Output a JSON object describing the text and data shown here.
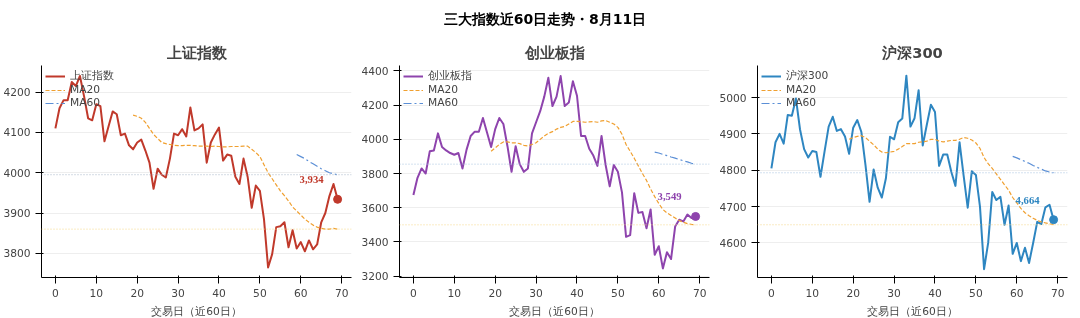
{
  "chart_data": [
    {
      "type": "other",
      "title": "三大指数近60日走势・8月11日"
    },
    {
      "type": "line",
      "title": "上证指数",
      "xlabel": "交易日（近60日）",
      "xlim": [
        -3.4,
        72.4
      ],
      "xticks": [
        0,
        10,
        20,
        30,
        40,
        50,
        60,
        70
      ],
      "ylim": [
        3740,
        4266
      ],
      "yticks": [
        3800,
        3900,
        4000,
        4100,
        4200
      ],
      "grid": "y",
      "legend": "top left",
      "series": [
        {
          "name": "上证指数",
          "type": "line",
          "color": "#c0392b",
          "line_style": "solid",
          "x": [
            0,
            1,
            2,
            3,
            4,
            5,
            6,
            7,
            8,
            9,
            10,
            11,
            12,
            13,
            14,
            15,
            16,
            17,
            18,
            19,
            20,
            21,
            22,
            23,
            24,
            25,
            26,
            27,
            28,
            29,
            30,
            31,
            32,
            33,
            34,
            35,
            36,
            37,
            38,
            39,
            40,
            41,
            42,
            43,
            44,
            45,
            46,
            47,
            48,
            49,
            50,
            51,
            52,
            53,
            54,
            55,
            56,
            57,
            58,
            59,
            60,
            61,
            62,
            63,
            64,
            65,
            66,
            67,
            68,
            69
          ],
          "values": [
            4110,
            4160,
            4180,
            4180,
            4225,
            4215,
            4240,
            4190,
            4135,
            4130,
            4170,
            4165,
            4078,
            4115,
            4152,
            4145,
            4093,
            4097,
            4068,
            4058,
            4075,
            4082,
            4055,
            4025,
            3960,
            4010,
            3995,
            3988,
            4035,
            4097,
            4093,
            4108,
            4090,
            4162,
            4105,
            4110,
            4120,
            4025,
            4075,
            4095,
            4112,
            4030,
            4045,
            4042,
            3990,
            3972,
            4035,
            3990,
            3913,
            3968,
            3955,
            3885,
            3765,
            3798,
            3865,
            3867,
            3877,
            3815,
            3857,
            3812,
            3828,
            3805,
            3832,
            3810,
            3822,
            3877,
            3900,
            3942,
            3972,
            3934
          ]
        },
        {
          "name": "MA20",
          "type": "line",
          "color": "#f0a030",
          "line_style": "dashed",
          "x": [
            19,
            20,
            21,
            22,
            23,
            24,
            25,
            26,
            27,
            28,
            29,
            30,
            31,
            32,
            33,
            34,
            35,
            36,
            37,
            38,
            39,
            40,
            41,
            42,
            43,
            44,
            45,
            46,
            47,
            48,
            49,
            50,
            51,
            52,
            53,
            54,
            55,
            56,
            57,
            58,
            59,
            60,
            61,
            62,
            63,
            64,
            65,
            66,
            67,
            68,
            69
          ],
          "values": [
            4143,
            4140,
            4135,
            4125,
            4110,
            4095,
            4085,
            4075,
            4072,
            4070,
            4068,
            4067,
            4067,
            4068,
            4068,
            4067,
            4066,
            4066,
            4066,
            4065,
            4066,
            4065,
            4064,
            4064,
            4065,
            4065,
            4065,
            4066,
            4066,
            4058,
            4050,
            4040,
            4020,
            4000,
            3985,
            3970,
            3955,
            3943,
            3930,
            3915,
            3905,
            3895,
            3885,
            3877,
            3870,
            3865,
            3862,
            3860,
            3860,
            3862,
            3860
          ]
        },
        {
          "name": "MA60",
          "type": "line",
          "color": "#5b8fd6",
          "line_style": "dashdot",
          "x": [
            59,
            60,
            61,
            62,
            63,
            64,
            65,
            66,
            67,
            68,
            69
          ],
          "values": [
            4045,
            4040,
            4035,
            4028,
            4022,
            4016,
            4010,
            4005,
            4000,
            3997,
            3995
          ]
        },
        {
          "type": "scatter",
          "marker": "circle",
          "color": "#c0392b",
          "x": [
            69
          ],
          "values": [
            3934
          ],
          "value_labels": [
            "3,934"
          ]
        }
      ],
      "ref_lines": [
        {
          "axis": "y",
          "value": 3995,
          "color": "#a8b8c8",
          "line_style": "dotted"
        },
        {
          "axis": "y",
          "value": 3860,
          "color": "#f5d78a",
          "line_style": "dotted"
        }
      ]
    },
    {
      "type": "line",
      "title": "创业板指",
      "xlabel": "交易日（近60日）",
      "xlim": [
        -3.4,
        72.4
      ],
      "xticks": [
        0,
        10,
        20,
        30,
        40,
        50,
        60,
        70
      ],
      "ylim": [
        3192,
        4432
      ],
      "yticks": [
        3200,
        3400,
        3600,
        3800,
        4000,
        4200,
        4400
      ],
      "grid": "y",
      "legend": "top left",
      "series": [
        {
          "name": "创业板指",
          "type": "line",
          "color": "#8e44ad",
          "line_style": "solid",
          "x": [
            0,
            1,
            2,
            3,
            4,
            5,
            6,
            7,
            8,
            9,
            10,
            11,
            12,
            13,
            14,
            15,
            16,
            17,
            18,
            19,
            20,
            21,
            22,
            23,
            24,
            25,
            26,
            27,
            28,
            29,
            30,
            31,
            32,
            33,
            34,
            35,
            36,
            37,
            38,
            39,
            40,
            41,
            42,
            43,
            44,
            45,
            46,
            47,
            48,
            49,
            50,
            51,
            52,
            53,
            54,
            55,
            56,
            57,
            58,
            59,
            60,
            61,
            62,
            63,
            64,
            65,
            66,
            67,
            68,
            69
          ],
          "values": [
            3675,
            3775,
            3830,
            3800,
            3930,
            3935,
            4035,
            3955,
            3935,
            3920,
            3910,
            3920,
            3830,
            3940,
            4020,
            4045,
            4045,
            4125,
            4040,
            3955,
            4060,
            4125,
            4090,
            3960,
            3810,
            3960,
            3855,
            3810,
            3830,
            4035,
            4100,
            4165,
            4250,
            4360,
            4195,
            4250,
            4370,
            4195,
            4215,
            4340,
            4255,
            4020,
            4020,
            3945,
            3905,
            3845,
            4020,
            3850,
            3725,
            3850,
            3810,
            3690,
            3430,
            3440,
            3685,
            3570,
            3575,
            3480,
            3590,
            3325,
            3375,
            3245,
            3340,
            3300,
            3490,
            3530,
            3520,
            3560,
            3540,
            3549
          ]
        },
        {
          "name": "MA20",
          "type": "line",
          "color": "#f0a030",
          "line_style": "dashed",
          "x": [
            19,
            20,
            21,
            22,
            23,
            24,
            25,
            26,
            27,
            28,
            29,
            30,
            31,
            32,
            33,
            34,
            35,
            36,
            37,
            38,
            39,
            40,
            41,
            42,
            43,
            44,
            45,
            46,
            47,
            48,
            49,
            50,
            51,
            52,
            53,
            54,
            55,
            56,
            57,
            58,
            59,
            60,
            61,
            62,
            63,
            64,
            65,
            66,
            67,
            68,
            69
          ],
          "values": [
            3930,
            3950,
            3970,
            3985,
            3985,
            3980,
            3980,
            3975,
            3965,
            3962,
            3970,
            3980,
            4000,
            4020,
            4035,
            4045,
            4060,
            4070,
            4075,
            4090,
            4105,
            4105,
            4103,
            4100,
            4102,
            4104,
            4100,
            4108,
            4110,
            4100,
            4090,
            4070,
            4030,
            3970,
            3930,
            3890,
            3845,
            3800,
            3760,
            3710,
            3665,
            3625,
            3590,
            3570,
            3555,
            3540,
            3525,
            3515,
            3507,
            3503,
            3500
          ]
        },
        {
          "name": "MA60",
          "type": "line",
          "color": "#5b8fd6",
          "line_style": "dashdot",
          "x": [
            59,
            60,
            61,
            62,
            63,
            64,
            65,
            66,
            67,
            68,
            69
          ],
          "values": [
            3925,
            3920,
            3912,
            3905,
            3897,
            3890,
            3882,
            3875,
            3868,
            3860,
            3855
          ]
        },
        {
          "type": "scatter",
          "marker": "circle",
          "color": "#8e44ad",
          "x": [
            69
          ],
          "values": [
            3549
          ],
          "value_labels": [
            "3,549"
          ]
        }
      ],
      "ref_lines": [
        {
          "axis": "y",
          "value": 3855,
          "color": "#a8c4e0",
          "line_style": "dotted"
        },
        {
          "axis": "y",
          "value": 3500,
          "color": "#f5d78a",
          "line_style": "dotted"
        }
      ]
    },
    {
      "type": "line",
      "title": "沪深300",
      "xlabel": "交易日（近60日）",
      "xlim": [
        -3.4,
        72.4
      ],
      "xticks": [
        0,
        10,
        20,
        30,
        40,
        50,
        60,
        70
      ],
      "ylim": [
        4505,
        5088
      ],
      "yticks": [
        4600,
        4700,
        4800,
        4900,
        5000
      ],
      "grid": "y",
      "legend": "top left",
      "series": [
        {
          "name": "沪深300",
          "type": "line",
          "color": "#2e86c1",
          "line_style": "solid",
          "x": [
            0,
            1,
            2,
            3,
            4,
            5,
            6,
            7,
            8,
            9,
            10,
            11,
            12,
            13,
            14,
            15,
            16,
            17,
            18,
            19,
            20,
            21,
            22,
            23,
            24,
            25,
            26,
            27,
            28,
            29,
            30,
            31,
            32,
            33,
            34,
            35,
            36,
            37,
            38,
            39,
            40,
            41,
            42,
            43,
            44,
            45,
            46,
            47,
            48,
            49,
            50,
            51,
            52,
            53,
            54,
            55,
            56,
            57,
            58,
            59,
            60,
            61,
            62,
            63,
            64,
            65,
            66,
            67,
            68,
            69
          ],
          "values": [
            4805,
            4877,
            4900,
            4873,
            4952,
            4950,
            4997,
            4912,
            4858,
            4835,
            4853,
            4850,
            4782,
            4852,
            4920,
            4947,
            4908,
            4913,
            4893,
            4845,
            4917,
            4938,
            4905,
            4815,
            4713,
            4802,
            4752,
            4725,
            4778,
            4892,
            4885,
            4932,
            4942,
            5060,
            4920,
            4943,
            5020,
            4868,
            4925,
            4980,
            4960,
            4812,
            4843,
            4843,
            4795,
            4757,
            4877,
            4785,
            4697,
            4797,
            4787,
            4700,
            4528,
            4600,
            4740,
            4718,
            4727,
            4650,
            4703,
            4570,
            4600,
            4550,
            4587,
            4545,
            4600,
            4658,
            4652,
            4698,
            4705,
            4664
          ]
        },
        {
          "name": "MA20",
          "type": "line",
          "color": "#f0a030",
          "line_style": "dashed",
          "x": [
            19,
            20,
            21,
            22,
            23,
            24,
            25,
            26,
            27,
            28,
            29,
            30,
            31,
            32,
            33,
            34,
            35,
            36,
            37,
            38,
            39,
            40,
            41,
            42,
            43,
            44,
            45,
            46,
            47,
            48,
            49,
            50,
            51,
            52,
            53,
            54,
            55,
            56,
            57,
            58,
            59,
            60,
            61,
            62,
            63,
            64,
            65,
            66,
            67,
            68,
            69
          ],
          "values": [
            4885,
            4890,
            4893,
            4895,
            4890,
            4880,
            4870,
            4858,
            4850,
            4848,
            4850,
            4852,
            4858,
            4865,
            4873,
            4873,
            4873,
            4877,
            4878,
            4880,
            4885,
            4885,
            4880,
            4878,
            4880,
            4882,
            4882,
            4885,
            4890,
            4888,
            4883,
            4875,
            4860,
            4835,
            4818,
            4805,
            4790,
            4775,
            4760,
            4745,
            4725,
            4710,
            4695,
            4683,
            4675,
            4668,
            4662,
            4658,
            4655,
            4653,
            4650
          ]
        },
        {
          "name": "MA60",
          "type": "line",
          "color": "#5b8fd6",
          "line_style": "dashdot",
          "x": [
            59,
            60,
            61,
            62,
            63,
            64,
            65,
            66,
            67,
            68,
            69
          ],
          "values": [
            4838,
            4834,
            4829,
            4824,
            4819,
            4813,
            4808,
            4803,
            4798,
            4795,
            4793
          ]
        },
        {
          "type": "scatter",
          "marker": "circle",
          "color": "#2e86c1",
          "x": [
            69
          ],
          "values": [
            4664
          ],
          "value_labels": [
            "4,664"
          ]
        }
      ],
      "ref_lines": [
        {
          "axis": "y",
          "value": 4793,
          "color": "#a8c4e0",
          "line_style": "dotted"
        },
        {
          "axis": "y",
          "value": 4650,
          "color": "#f5d78a",
          "line_style": "dotted"
        }
      ]
    }
  ]
}
